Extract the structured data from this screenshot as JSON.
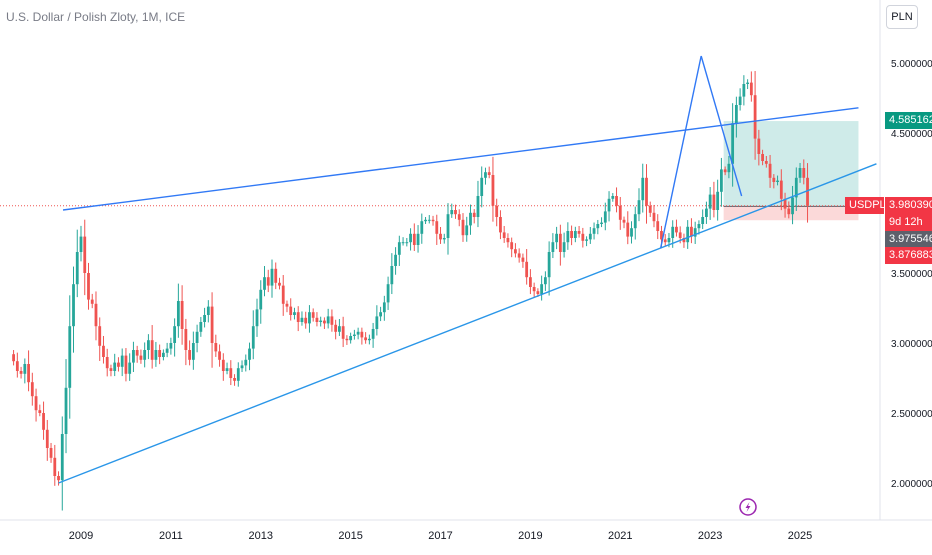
{
  "header": {
    "symbol_title": "U.S. Dollar / Polish Zloty, 1M, ICE",
    "currency_button": "PLN"
  },
  "colors": {
    "up": "#26a69a",
    "down": "#ef5350",
    "trendline": "#3179f5",
    "support_line": "#2a96e8",
    "target_zone": "#26a69a",
    "stop_zone": "#ef5350",
    "current_price_line": "#ef5350",
    "tag_target": "#089981",
    "tag_price": "#f23645",
    "tag_gray": "#5d606b",
    "event_icon": "#9c27b0"
  },
  "tags": {
    "target": "4.585162",
    "symbol": "USDPLN",
    "price": "3.980390",
    "countdown": "9d 12h",
    "entry": "3.975546",
    "stop": "3.876883"
  },
  "icons": {
    "event": "lightning-bolt-icon"
  },
  "chart_data": {
    "type": "candlestick",
    "title": "U.S. Dollar / Polish Zloty, 1M, ICE",
    "symbol": "USDPLN",
    "interval": "1M",
    "currency": "PLN",
    "xlabel": "",
    "ylabel": "",
    "x_ticks": [
      "2009",
      "2011",
      "2013",
      "2015",
      "2017",
      "2019",
      "2021",
      "2023",
      "2025"
    ],
    "y_ticks": [
      "2.000000",
      "2.500000",
      "3.000000",
      "3.500000",
      "4.500000",
      "5.000000"
    ],
    "xlim": [
      2007.5,
      2026.7
    ],
    "ylim": [
      1.75,
      5.3
    ],
    "grid": false,
    "legend": "none",
    "last_price": 3.98039,
    "close_series": {
      "x_start": 2007.5,
      "step_months": 1,
      "closes": [
        2.87,
        2.8,
        2.78,
        2.85,
        2.72,
        2.62,
        2.52,
        2.5,
        2.38,
        2.25,
        2.18,
        2.05,
        2.02,
        2.35,
        2.68,
        3.12,
        3.42,
        3.65,
        3.76,
        3.5,
        3.31,
        3.28,
        3.12,
        2.98,
        2.9,
        2.82,
        2.8,
        2.86,
        2.83,
        2.91,
        2.78,
        2.86,
        2.95,
        2.91,
        2.88,
        2.95,
        3.02,
        2.88,
        2.95,
        2.9,
        2.93,
        2.96,
        3.0,
        3.12,
        3.3,
        3.1,
        2.95,
        2.88,
        3.0,
        3.08,
        3.15,
        3.2,
        3.26,
        3.0,
        2.94,
        2.88,
        2.8,
        2.82,
        2.75,
        2.73,
        2.82,
        2.84,
        2.88,
        2.96,
        3.12,
        3.24,
        3.38,
        3.47,
        3.41,
        3.53,
        3.43,
        3.41,
        3.28,
        3.26,
        3.2,
        3.22,
        3.15,
        3.18,
        3.14,
        3.22,
        3.18,
        3.15,
        3.16,
        3.14,
        3.19,
        3.13,
        3.08,
        3.12,
        3.03,
        3.02,
        3.05,
        3.06,
        3.08,
        3.04,
        3.02,
        3.03,
        3.1,
        3.19,
        3.22,
        3.29,
        3.42,
        3.55,
        3.63,
        3.72,
        3.72,
        3.72,
        3.78,
        3.7,
        3.78,
        3.87,
        3.88,
        3.88,
        3.87,
        3.78,
        3.74,
        3.75,
        3.92,
        3.95,
        3.92,
        3.88,
        3.77,
        3.84,
        3.93,
        3.9,
        4.05,
        4.18,
        4.22,
        4.2,
        3.98,
        3.9,
        3.79,
        3.75,
        3.72,
        3.67,
        3.64,
        3.61,
        3.58,
        3.47,
        3.4,
        3.37,
        3.35,
        3.42,
        3.47,
        3.65,
        3.72,
        3.78,
        3.65,
        3.72,
        3.8,
        3.75,
        3.8,
        3.78,
        3.73,
        3.74,
        3.78,
        3.82,
        3.85,
        3.86,
        3.94,
        4.03,
        4.05,
        3.98,
        3.88,
        3.86,
        3.76,
        3.82,
        3.92,
        4.02,
        4.18,
        3.98,
        3.93,
        3.87,
        3.8,
        3.74,
        3.72,
        3.75,
        3.83,
        3.79,
        3.75,
        3.72,
        3.83,
        3.76,
        3.82,
        3.85,
        3.9,
        3.96,
        4.06,
        3.95,
        4.08,
        4.24,
        4.22,
        4.28,
        4.57,
        4.7,
        4.76,
        4.85,
        4.86,
        4.77,
        4.46,
        4.35,
        4.3,
        4.28,
        4.18,
        4.15,
        4.16,
        4.03,
        3.96,
        3.92,
        4.04,
        4.18,
        4.25,
        4.18,
        3.98
      ]
    },
    "overlays": {
      "rising_wedge_upper": [
        [
          2008.6,
          3.95
        ],
        [
          2026.3,
          4.68
        ]
      ],
      "rising_wedge_lower": [
        [
          2008.5,
          2.0
        ],
        [
          2026.7,
          4.28
        ]
      ],
      "pattern_leg_up": [
        [
          2021.9,
          3.68
        ],
        [
          2022.8,
          5.05
        ]
      ],
      "pattern_leg_down": [
        [
          2022.8,
          5.05
        ],
        [
          2023.7,
          4.05
        ]
      ],
      "position": {
        "type": "long",
        "x_range": [
          2023.3,
          2026.3
        ],
        "entry": 3.975546,
        "target": 4.585162,
        "stop": 3.876883
      }
    }
  }
}
